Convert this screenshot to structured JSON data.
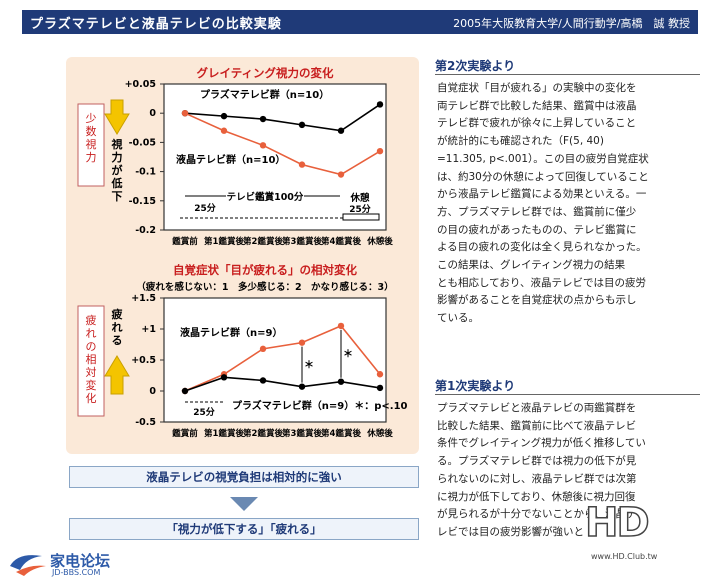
{
  "header": {
    "title": "プラズマテレビと液晶テレビの比較実験",
    "source": "2005年大阪教育大学/人間行動学/高橋　誠 教授"
  },
  "chart1": {
    "title": "グレイティング視力の変化",
    "side_label": "少数視力",
    "arrow_label": "視力が低下",
    "yticks": [
      "+0.05",
      "0",
      "-0.05",
      "-0.1",
      "-0.15",
      "-0.2"
    ],
    "categories": [
      "鑑賞前",
      "第1鑑賞後",
      "第2鑑賞後",
      "第3鑑賞後",
      "第4鑑賞後",
      "休憩後"
    ],
    "plasma_label": "プラズマテレビ群（n=10）",
    "lcd_label": "液晶テレビ群（n=10）",
    "span_label": "テレビ鑑賞100分",
    "rest_label": "休憩",
    "min1": "25分",
    "min2": "25分"
  },
  "chart2": {
    "title": "自覚症状「目が疲れる」の相対変化",
    "subtitle": "（疲れを感じない：1　多少感じる：2　かなり感じる：3）",
    "side_label": "疲れの相対変化",
    "arrow_label": "疲れる",
    "yticks": [
      "+1.5",
      "+1",
      "+0.5",
      "0",
      "-0.5"
    ],
    "categories": [
      "鑑賞前",
      "第1鑑賞後",
      "第2鑑賞後",
      "第3鑑賞後",
      "第4鑑賞後",
      "休憩後"
    ],
    "lcd_label": "液晶テレビ群（n=9）",
    "plasma_label": "プラズマテレビ群（n=9）＊：p<.10",
    "min": "25分",
    "star": "＊"
  },
  "chart_data": [
    {
      "type": "line",
      "title": "グレイティング視力の変化",
      "categories": [
        "鑑賞前",
        "第1鑑賞後",
        "第2鑑賞後",
        "第3鑑賞後",
        "第4鑑賞後",
        "休憩後"
      ],
      "ylabel": "少数視力",
      "ylim": [
        -0.2,
        0.05
      ],
      "series": [
        {
          "name": "プラズマテレビ群（n=10）",
          "color": "#000000",
          "values": [
            0,
            -0.005,
            -0.01,
            -0.02,
            -0.03,
            0.015
          ]
        },
        {
          "name": "液晶テレビ群（n=10）",
          "color": "#e8603c",
          "values": [
            0,
            -0.03,
            -0.055,
            -0.088,
            -0.105,
            -0.065
          ]
        }
      ]
    },
    {
      "type": "line",
      "title": "自覚症状「目が疲れる」の相対変化",
      "categories": [
        "鑑賞前",
        "第1鑑賞後",
        "第2鑑賞後",
        "第3鑑賞後",
        "第4鑑賞後",
        "休憩後"
      ],
      "ylabel": "疲れの相対変化",
      "ylim": [
        -0.5,
        1.5
      ],
      "series": [
        {
          "name": "液晶テレビ群（n=9）",
          "color": "#e8603c",
          "values": [
            0,
            0.27,
            0.68,
            0.78,
            1.05,
            0.27
          ]
        },
        {
          "name": "プラズマテレビ群（n=9）",
          "color": "#000000",
          "values": [
            0,
            0.22,
            0.17,
            0.07,
            0.15,
            0.05
          ]
        }
      ]
    }
  ],
  "box1": "液晶テレビの視覚負担は相対的に強い",
  "box2": "「視力が低下する」「疲れる」",
  "section2": {
    "heading": "第2次実験より",
    "lines": [
      "自覚症状「目が疲れる」の実験中の変化を",
      "両テレビ群で比較した結果、鑑賞中は液晶",
      "テレビ群で疲れが徐々に上昇していること",
      "が統計的にも確認された（F(5, 40)",
      "=11.305, p<.001）。この目の疲労自覚症状",
      "は、約30分の休憩によって回復していること",
      "から液晶テレビ鑑賞による効果といえる。一",
      "方、プラズマテレビ群では、鑑賞前に僅少",
      "の目の疲れがあったものの、テレビ鑑賞に",
      "よる目の疲れの変化は全く見られなかった。",
      "この結果は、グレイティング視力の結果",
      "とも相応しており、液晶テレビでは目の疲労",
      "影響があることを自覚症状の点からも示し",
      "ている。"
    ]
  },
  "section1": {
    "heading": "第1次実験より",
    "lines": [
      "プラズマテレビと液晶テレビの両鑑賞群を",
      "比較した結果、鑑賞前に比べて液晶テレビ",
      "条件でグレイティング視力が低く推移してい",
      "る。プラズマテレビ群では視力の低下が見",
      "られないのに対し、液晶テレビ群では次第",
      "に視力が低下しており、休憩後に視力回復",
      "が見られるが十分でないことから、液晶テ",
      "レビでは目の疲労影響が強いと"
    ]
  },
  "logo": {
    "cn": "家电论坛",
    "en": "JD-BBS.COM"
  },
  "watermark": {
    "big": "HD",
    "url": "www.HD.Club.tw"
  },
  "colors": {
    "header": "#1f3a78",
    "lcd": "#e8603c",
    "plasma": "#000000",
    "panel": "#fbe9d8",
    "arrow": "#f4c400"
  }
}
